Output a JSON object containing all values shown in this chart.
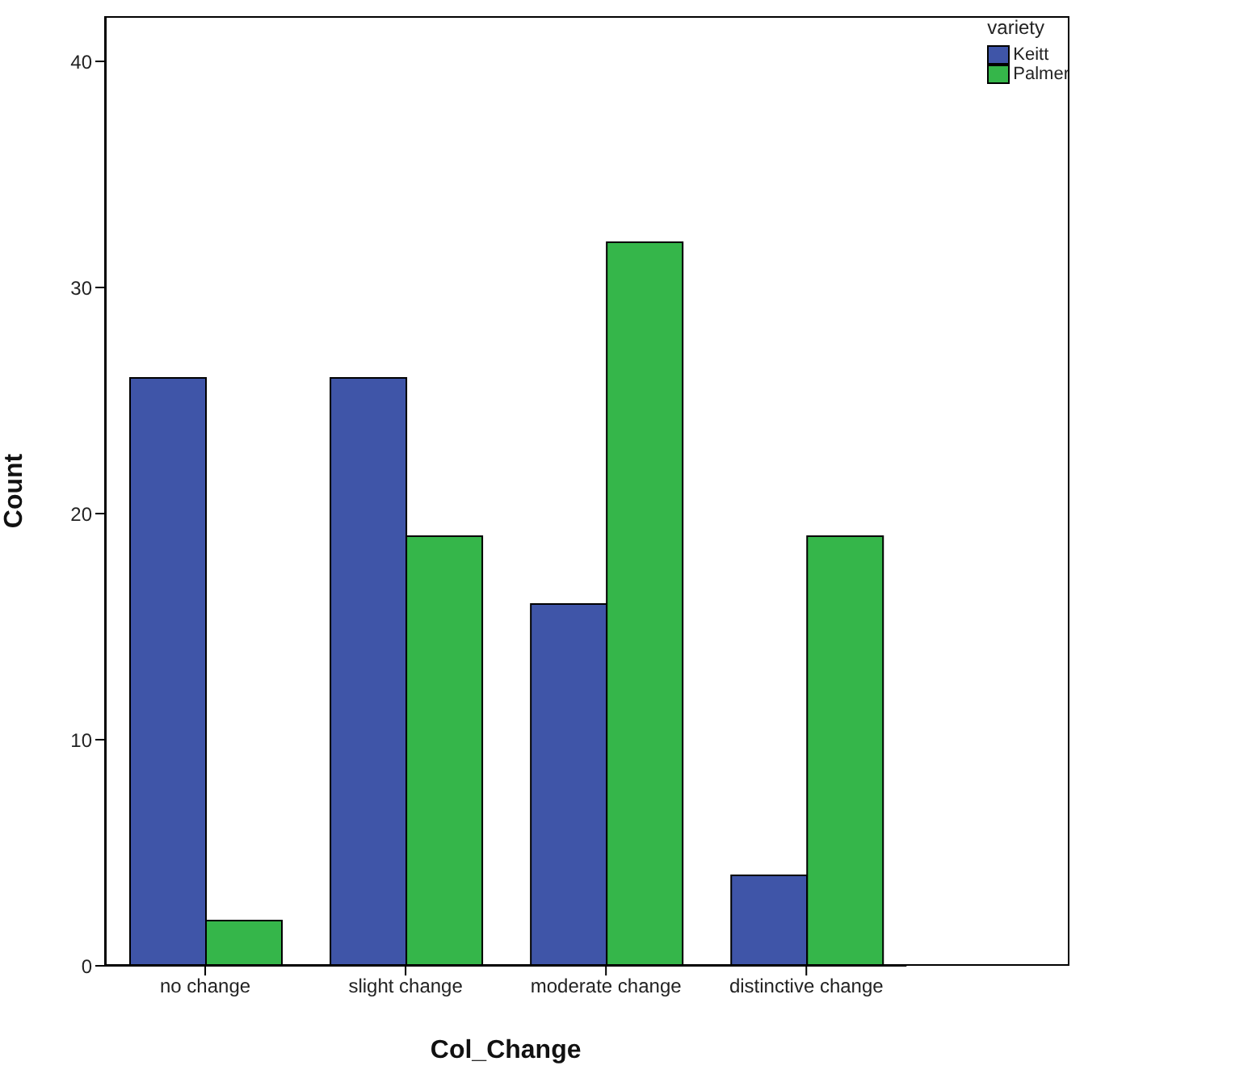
{
  "chart_data": {
    "type": "bar",
    "xlabel": "Col_Change",
    "ylabel": "Count",
    "legend_title": "variety",
    "categories": [
      "no change",
      "slight change",
      "moderate change",
      "distinctive change"
    ],
    "series": [
      {
        "name": "Keitt",
        "color": "#3f55a8",
        "values": [
          26,
          26,
          16,
          4
        ]
      },
      {
        "name": "Palmer",
        "color": "#35b64a",
        "values": [
          2,
          19,
          32,
          19
        ]
      }
    ],
    "ylim": [
      0,
      42
    ],
    "yticks": [
      0,
      10,
      20,
      30,
      40
    ],
    "legend": "top right"
  }
}
